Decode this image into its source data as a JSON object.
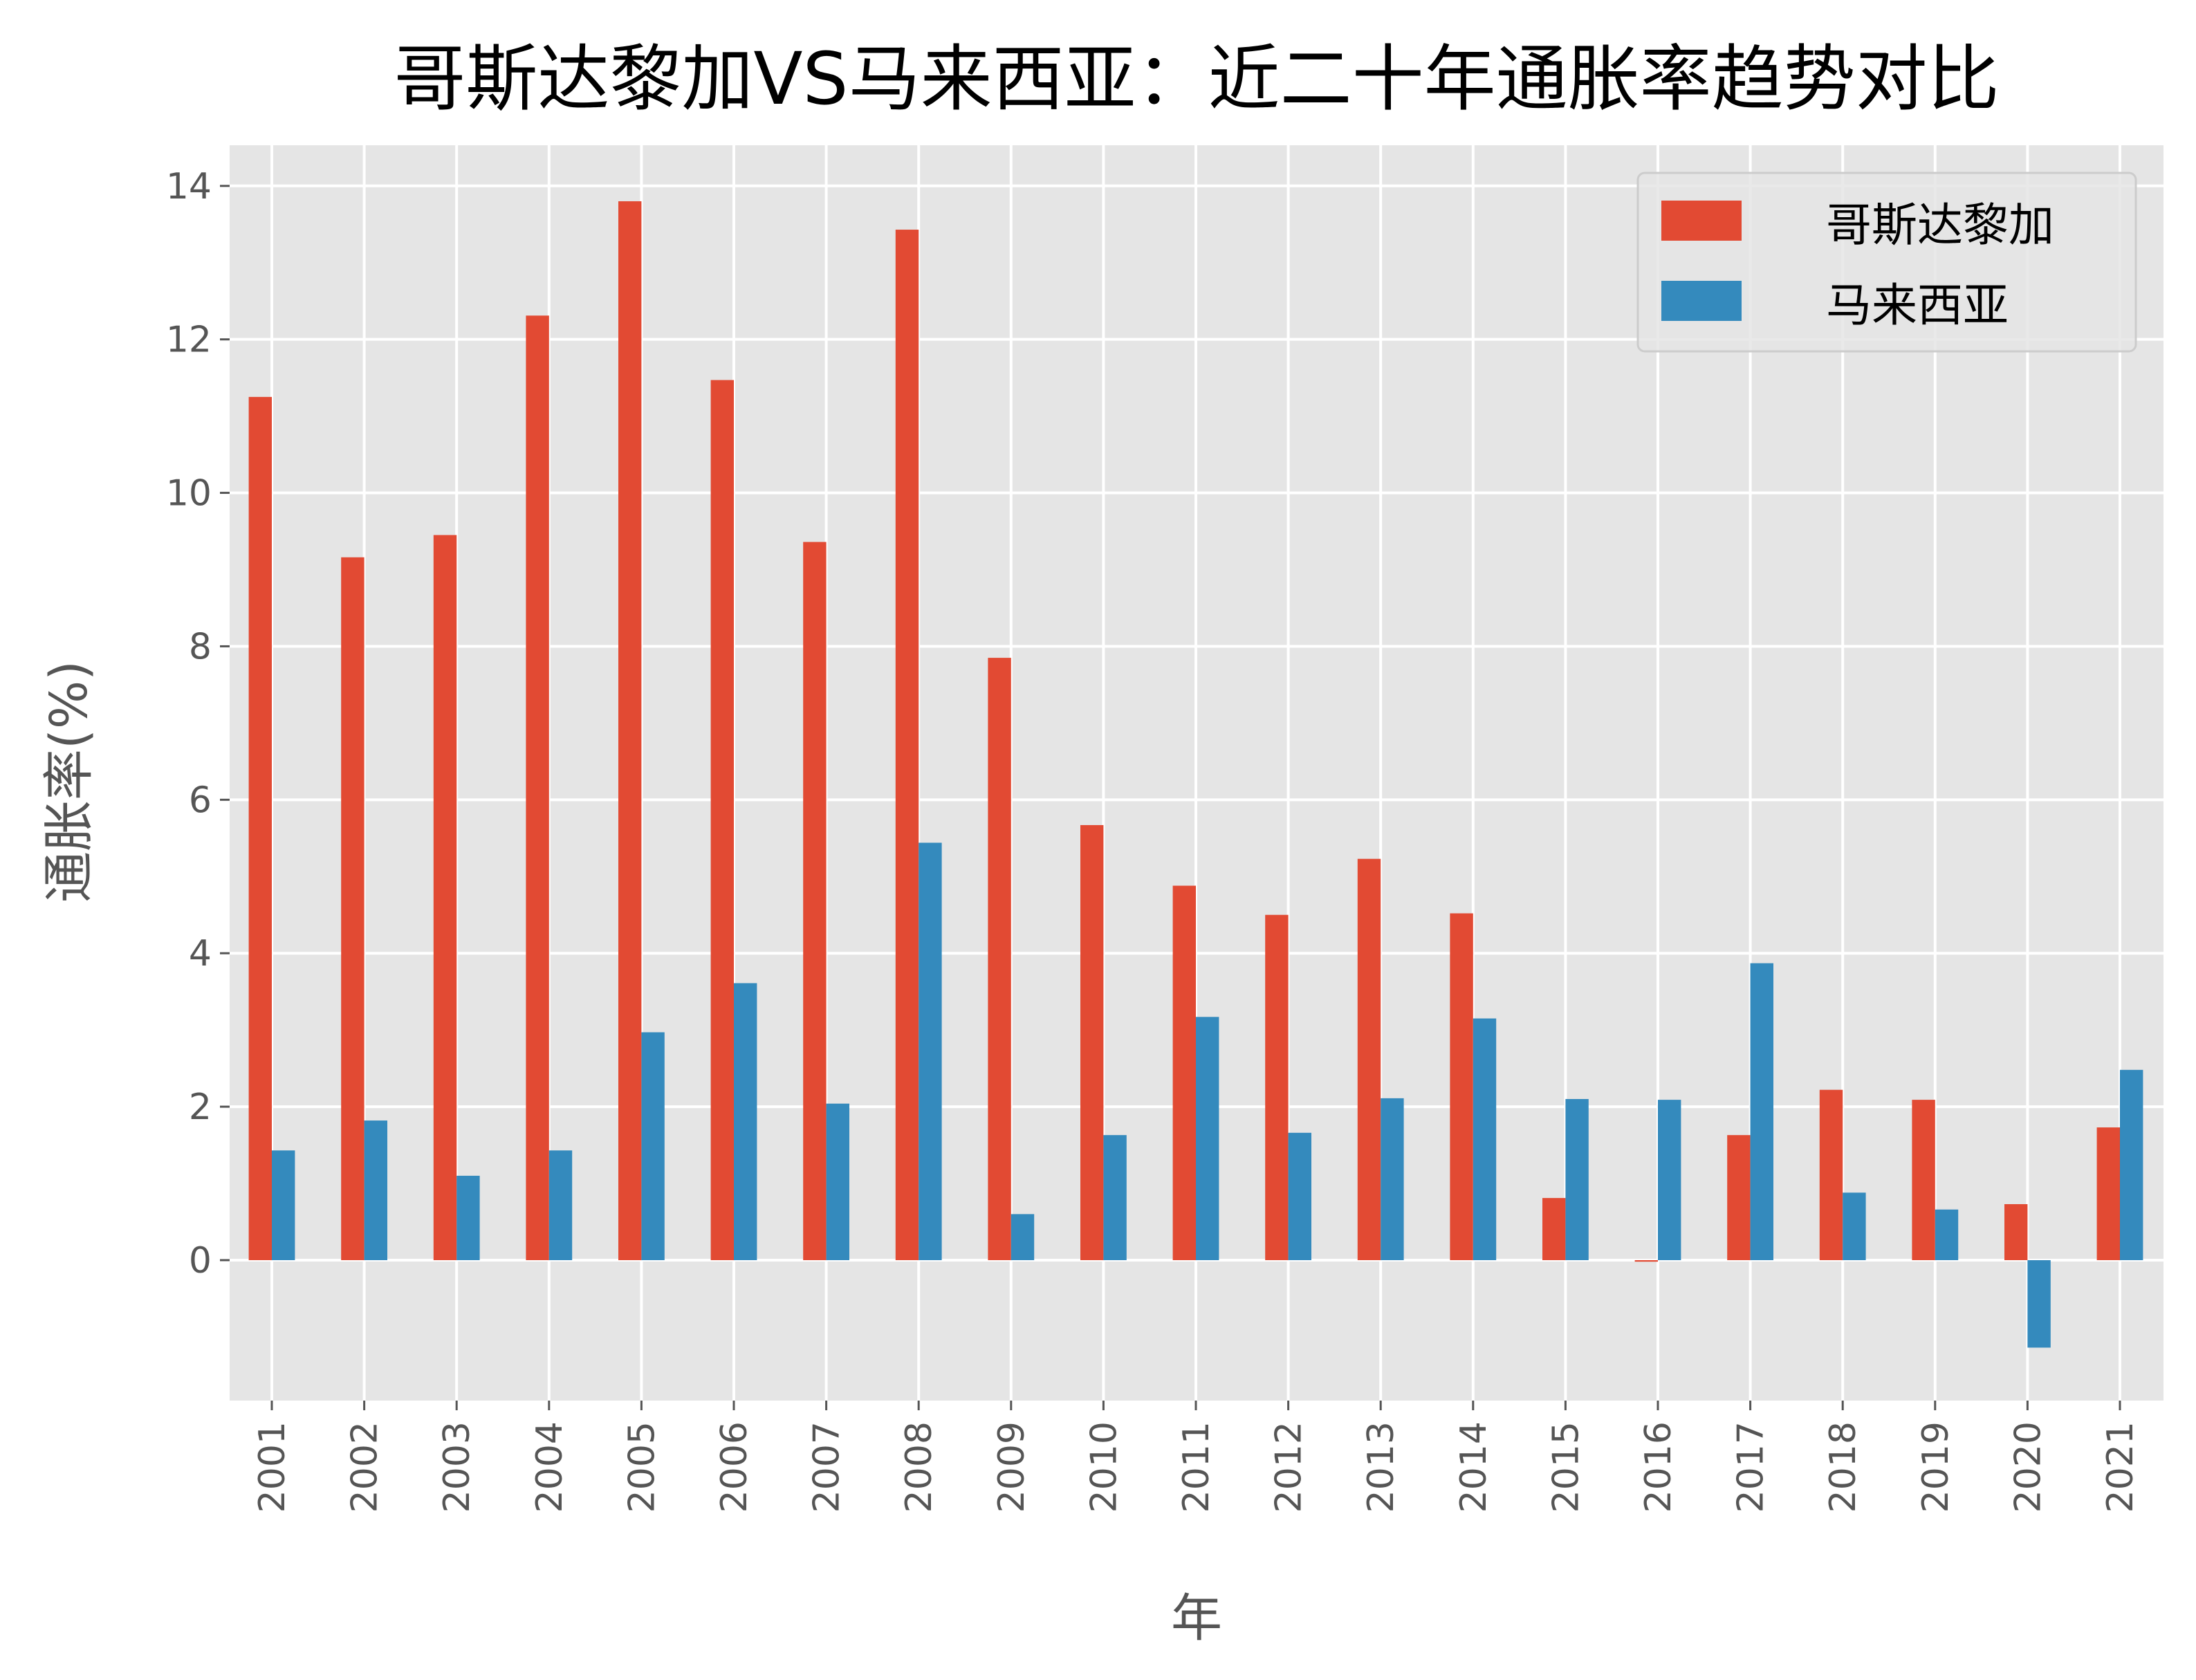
{
  "chart_data": {
    "type": "bar",
    "title": "哥斯达黎加VS马来西亚：近二十年通胀率趋势对比",
    "xlabel": "年",
    "ylabel": "通胀率(%)",
    "categories": [
      "2001",
      "2002",
      "2003",
      "2004",
      "2005",
      "2006",
      "2007",
      "2008",
      "2009",
      "2010",
      "2011",
      "2012",
      "2013",
      "2014",
      "2015",
      "2016",
      "2017",
      "2018",
      "2019",
      "2020",
      "2021"
    ],
    "series": [
      {
        "name": "哥斯达黎加",
        "color": "#E24A33",
        "values": [
          11.25,
          9.16,
          9.45,
          12.31,
          13.8,
          11.47,
          9.36,
          13.43,
          7.85,
          5.67,
          4.88,
          4.5,
          5.23,
          4.52,
          0.81,
          -0.02,
          1.63,
          2.22,
          2.09,
          0.73,
          1.73
        ]
      },
      {
        "name": "马来西亚",
        "color": "#348ABD",
        "values": [
          1.43,
          1.82,
          1.1,
          1.43,
          2.97,
          3.61,
          2.04,
          5.44,
          0.6,
          1.63,
          3.17,
          1.66,
          2.11,
          3.15,
          2.1,
          2.09,
          3.87,
          0.88,
          0.66,
          -1.14,
          2.48
        ]
      }
    ],
    "yticks": [
      "0",
      "2",
      "4",
      "6",
      "8",
      "10",
      "12",
      "14"
    ],
    "ylim": [
      -1.83,
      14.53
    ],
    "grid": true,
    "legend_position": "top-right",
    "background": "#E5E5E5"
  }
}
